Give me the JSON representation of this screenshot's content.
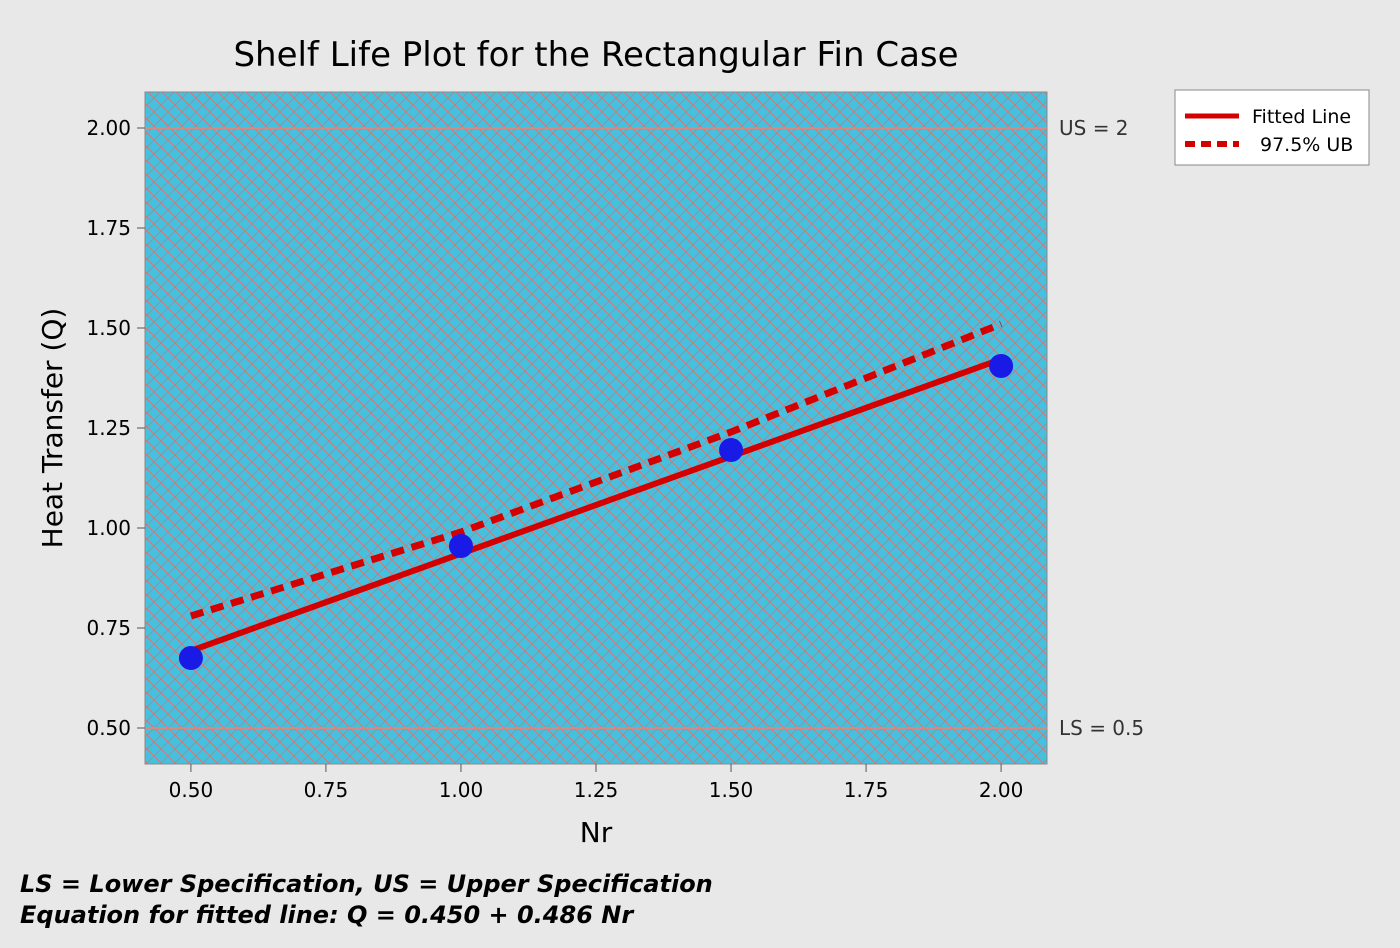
{
  "chart_data": {
    "type": "line",
    "title": "Shelf Life Plot for the Rectangular Fin Case",
    "xlabel": "Nr",
    "ylabel": "Heat Transfer (Q)",
    "xlim": [
      0.415,
      2.085
    ],
    "ylim": [
      0.41,
      2.09
    ],
    "x_ticks": [
      0.5,
      0.75,
      1.0,
      1.25,
      1.5,
      1.75,
      2.0
    ],
    "x_tick_labels": [
      "0.50",
      "0.75",
      "1.00",
      "1.25",
      "1.50",
      "1.75",
      "2.00"
    ],
    "y_ticks": [
      0.5,
      0.75,
      1.0,
      1.25,
      1.5,
      1.75,
      2.0
    ],
    "y_tick_labels": [
      "0.50",
      "0.75",
      "1.00",
      "1.25",
      "1.50",
      "1.75",
      "2.00"
    ],
    "points": {
      "name": "Observed",
      "x": [
        0.5,
        1.0,
        1.5,
        2.0
      ],
      "y": [
        0.675,
        0.955,
        1.195,
        1.405
      ],
      "color": "#1a1ae6"
    },
    "series": [
      {
        "name": "Fitted Line",
        "style": "solid",
        "x": [
          0.5,
          2.0
        ],
        "y": [
          0.693,
          1.422
        ],
        "color": "#d40000"
      },
      {
        "name": "97.5% UB",
        "style": "dashed",
        "x": [
          0.5,
          1.0,
          1.5,
          2.0
        ],
        "y": [
          0.78,
          0.99,
          1.24,
          1.51
        ],
        "color": "#d40000"
      }
    ],
    "reference_lines": [
      {
        "label": "US = 2",
        "y": 2.0
      },
      {
        "label": "LS = 0.5",
        "y": 0.5
      }
    ],
    "legend": {
      "position": "top-right",
      "entries": [
        "Fitted Line",
        "97.5% UB"
      ]
    },
    "colors": {
      "plot_background": "#45c0de",
      "hatch": "#e0706a",
      "reference_line": "#d68a82",
      "page_background": "#e8e8e8"
    }
  },
  "footnotes": {
    "line1": "LS = Lower Specification, US = Upper Specification",
    "line2": "Equation for fitted line: Q = 0.450 + 0.486 Nr"
  }
}
